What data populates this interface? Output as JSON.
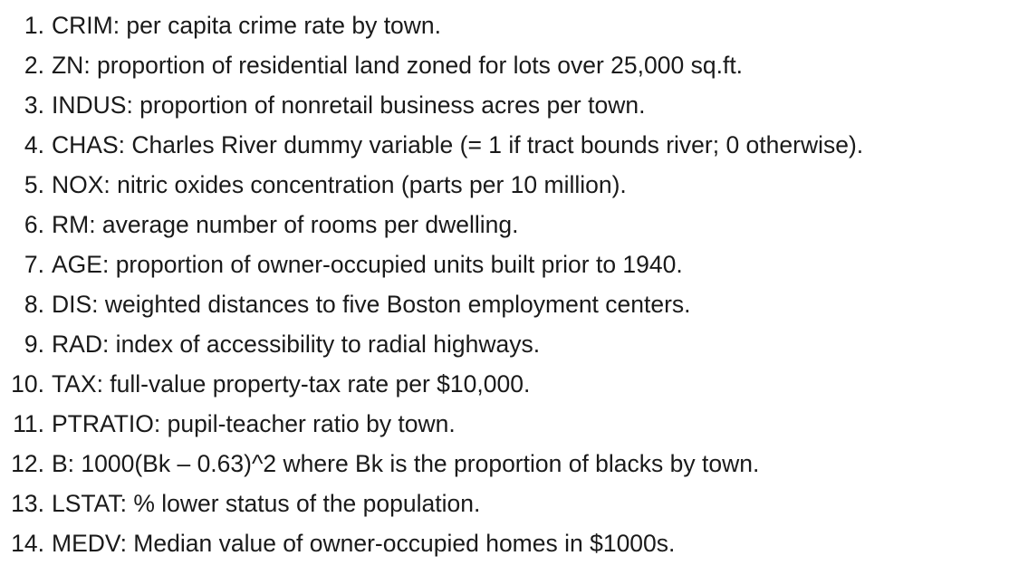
{
  "attributes": [
    {
      "number": "1.",
      "text": "CRIM: per capita crime rate by town."
    },
    {
      "number": "2.",
      "text": "ZN: proportion of residential land zoned for lots over 25,000 sq.ft."
    },
    {
      "number": "3.",
      "text": "INDUS: proportion of nonretail business acres per town."
    },
    {
      "number": "4.",
      "text": "CHAS: Charles River dummy variable (= 1 if tract bounds river; 0 otherwise)."
    },
    {
      "number": "5.",
      "text": "NOX: nitric oxides concentration (parts per 10 million)."
    },
    {
      "number": "6.",
      "text": "RM: average number of rooms per dwelling."
    },
    {
      "number": "7.",
      "text": "AGE: proportion of owner-occupied units built prior to 1940."
    },
    {
      "number": "8.",
      "text": "DIS: weighted distances to five Boston employment centers."
    },
    {
      "number": "9.",
      "text": "RAD: index of accessibility to radial highways."
    },
    {
      "number": "10.",
      "text": "TAX: full-value property-tax rate per $10,000."
    },
    {
      "number": "11.",
      "text": "PTRATIO: pupil-teacher ratio by town."
    },
    {
      "number": "12.",
      "text": "B: 1000(Bk – 0.63)^2 where Bk is the proportion of blacks by town."
    },
    {
      "number": "13.",
      "text": "LSTAT: % lower status of the population."
    },
    {
      "number": "14.",
      "text": "MEDV: Median value of owner-occupied homes in $1000s."
    }
  ]
}
